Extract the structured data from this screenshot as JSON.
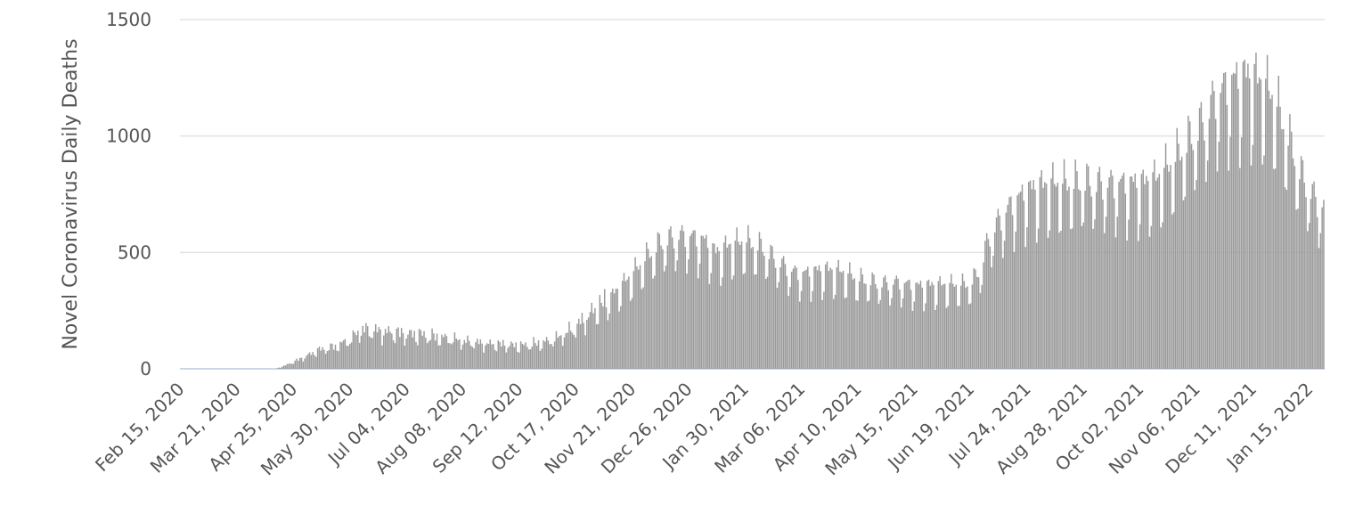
{
  "chart_data": {
    "type": "bar",
    "title": "",
    "xlabel": "",
    "ylabel": "Novel Coronavirus Daily Deaths",
    "x_start": "2020-02-15",
    "x_end": "2022-01-24",
    "ylim": [
      0,
      1500
    ],
    "yticks": [
      0,
      500,
      1000,
      1500
    ],
    "xtick_labels": [
      "Feb 15, 2020",
      "Mar 21, 2020",
      "Apr 25, 2020",
      "May 30, 2020",
      "Jul 04, 2020",
      "Aug 08, 2020",
      "Sep 12, 2020",
      "Oct 17, 2020",
      "Nov 21, 2020",
      "Dec 26, 2020",
      "Jan 30, 2021",
      "Mar 06, 2021",
      "Apr 10, 2021",
      "May 15, 2021",
      "Jun 19, 2021",
      "Jul 24, 2021",
      "Aug 28, 2021",
      "Oct 02, 2021",
      "Nov 06, 2021",
      "Dec 11, 2021",
      "Jan 15, 2022"
    ],
    "grid": true,
    "bar_color": "#9a9a9a",
    "weekly_average": [
      {
        "date": "2020-02-15",
        "value": 0
      },
      {
        "date": "2020-04-01",
        "value": 0
      },
      {
        "date": "2020-04-14",
        "value": 0
      },
      {
        "date": "2020-04-20",
        "value": 15
      },
      {
        "date": "2020-04-30",
        "value": 45
      },
      {
        "date": "2020-05-10",
        "value": 80
      },
      {
        "date": "2020-05-20",
        "value": 95
      },
      {
        "date": "2020-05-30",
        "value": 125
      },
      {
        "date": "2020-06-06",
        "value": 170
      },
      {
        "date": "2020-06-14",
        "value": 165
      },
      {
        "date": "2020-06-22",
        "value": 160
      },
      {
        "date": "2020-07-04",
        "value": 150
      },
      {
        "date": "2020-07-12",
        "value": 150
      },
      {
        "date": "2020-07-20",
        "value": 140
      },
      {
        "date": "2020-08-01",
        "value": 130
      },
      {
        "date": "2020-08-08",
        "value": 120
      },
      {
        "date": "2020-08-20",
        "value": 110
      },
      {
        "date": "2020-09-01",
        "value": 105
      },
      {
        "date": "2020-09-12",
        "value": 100
      },
      {
        "date": "2020-09-25",
        "value": 110
      },
      {
        "date": "2020-10-05",
        "value": 130
      },
      {
        "date": "2020-10-17",
        "value": 180
      },
      {
        "date": "2020-10-28",
        "value": 250
      },
      {
        "date": "2020-11-07",
        "value": 300
      },
      {
        "date": "2020-11-21",
        "value": 400
      },
      {
        "date": "2020-12-01",
        "value": 480
      },
      {
        "date": "2020-12-10",
        "value": 540
      },
      {
        "date": "2020-12-20",
        "value": 560
      },
      {
        "date": "2020-12-26",
        "value": 560
      },
      {
        "date": "2021-01-05",
        "value": 540
      },
      {
        "date": "2021-01-12",
        "value": 490
      },
      {
        "date": "2021-01-20",
        "value": 520
      },
      {
        "date": "2021-01-30",
        "value": 540
      },
      {
        "date": "2021-02-10",
        "value": 510
      },
      {
        "date": "2021-02-20",
        "value": 450
      },
      {
        "date": "2021-03-01",
        "value": 410
      },
      {
        "date": "2021-03-06",
        "value": 400
      },
      {
        "date": "2021-03-20",
        "value": 420
      },
      {
        "date": "2021-04-01",
        "value": 410
      },
      {
        "date": "2021-04-10",
        "value": 380
      },
      {
        "date": "2021-04-25",
        "value": 360
      },
      {
        "date": "2021-05-05",
        "value": 365
      },
      {
        "date": "2021-05-15",
        "value": 350
      },
      {
        "date": "2021-06-01",
        "value": 355
      },
      {
        "date": "2021-06-15",
        "value": 355
      },
      {
        "date": "2021-06-19",
        "value": 360
      },
      {
        "date": "2021-06-25",
        "value": 420
      },
      {
        "date": "2021-06-30",
        "value": 550
      },
      {
        "date": "2021-07-06",
        "value": 620
      },
      {
        "date": "2021-07-14",
        "value": 690
      },
      {
        "date": "2021-07-24",
        "value": 750
      },
      {
        "date": "2021-08-01",
        "value": 770
      },
      {
        "date": "2021-08-10",
        "value": 780
      },
      {
        "date": "2021-08-20",
        "value": 780
      },
      {
        "date": "2021-08-28",
        "value": 790
      },
      {
        "date": "2021-09-05",
        "value": 780
      },
      {
        "date": "2021-09-20",
        "value": 780
      },
      {
        "date": "2021-10-02",
        "value": 780
      },
      {
        "date": "2021-10-12",
        "value": 800
      },
      {
        "date": "2021-10-22",
        "value": 870
      },
      {
        "date": "2021-11-01",
        "value": 960
      },
      {
        "date": "2021-11-06",
        "value": 1000
      },
      {
        "date": "2021-11-12",
        "value": 1060
      },
      {
        "date": "2021-11-18",
        "value": 1150
      },
      {
        "date": "2021-11-25",
        "value": 1190
      },
      {
        "date": "2021-11-30",
        "value": 1215
      },
      {
        "date": "2021-12-05",
        "value": 1235
      },
      {
        "date": "2021-12-11",
        "value": 1230
      },
      {
        "date": "2021-12-18",
        "value": 1200
      },
      {
        "date": "2021-12-25",
        "value": 1130
      },
      {
        "date": "2021-12-31",
        "value": 1010
      },
      {
        "date": "2022-01-05",
        "value": 920
      },
      {
        "date": "2022-01-10",
        "value": 820
      },
      {
        "date": "2022-01-15",
        "value": 760
      },
      {
        "date": "2022-01-20",
        "value": 700
      },
      {
        "date": "2022-01-24",
        "value": 690
      }
    ]
  }
}
